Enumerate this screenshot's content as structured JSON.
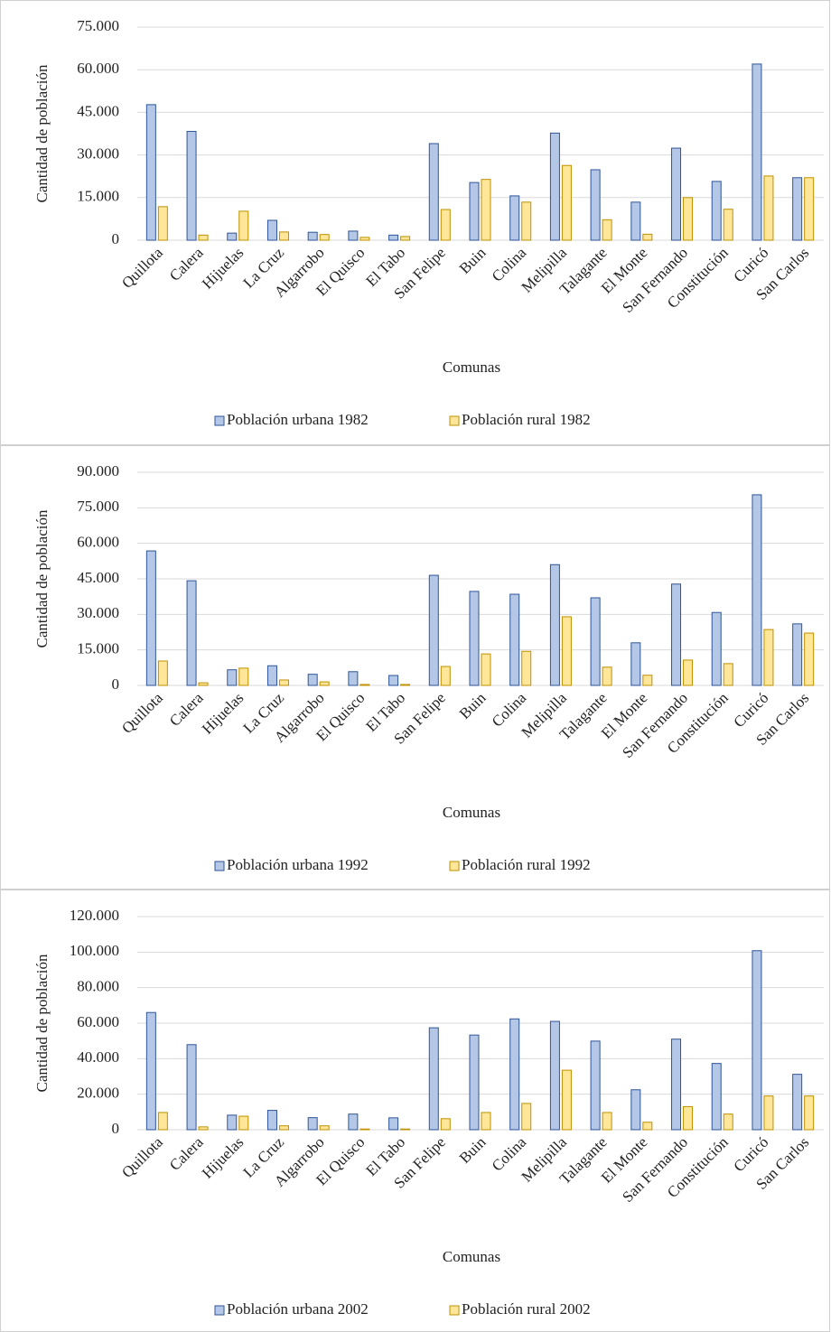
{
  "chart_data": [
    {
      "type": "bar",
      "y_label": "Cantidad de población",
      "x_label": "Comunas",
      "categories": [
        "Quillota",
        "Calera",
        "Hijuelas",
        "La Cruz",
        "Algarrobo",
        "El Quisco",
        "El Tabo",
        "San Felipe",
        "Buin",
        "Colina",
        "Melipilla",
        "Talagante",
        "El Monte",
        "San Fernando",
        "Constitución",
        "Curicó",
        "San Carlos"
      ],
      "series": [
        {
          "name": "Población urbana 1982",
          "color": "#b4c7e7",
          "values": [
            47700,
            38300,
            2500,
            7000,
            2800,
            3200,
            1800,
            34000,
            20300,
            15600,
            37700,
            24800,
            13400,
            32400,
            20700,
            62000,
            22000
          ]
        },
        {
          "name": "Población rural 1982",
          "color": "#ffe699",
          "values": [
            11800,
            1800,
            10200,
            2900,
            2000,
            1000,
            1300,
            10800,
            21400,
            13400,
            26300,
            7200,
            2100,
            15000,
            10900,
            22600,
            22000
          ]
        }
      ],
      "ylim": [
        0,
        75000
      ],
      "yticks": [
        0,
        {
          "value": 15000,
          "label": "15.000"
        },
        {
          "value": 30000,
          "label": "30.000"
        },
        {
          "value": 45000,
          "label": "45.000"
        },
        {
          "value": 60000,
          "label": "60.000"
        },
        {
          "value": 75000,
          "label": "75.000"
        }
      ],
      "grid": true,
      "legend": "bottom"
    },
    {
      "type": "bar",
      "y_label": "Cantidad de población",
      "x_label": "Comunas",
      "categories": [
        "Quillota",
        "Calera",
        "Hijuelas",
        "La Cruz",
        "Algarrobo",
        "El Quisco",
        "El Tabo",
        "San Felipe",
        "Buin",
        "Colina",
        "Melipilla",
        "Talagante",
        "El Monte",
        "San Fernando",
        "Constitución",
        "Curicó",
        "San Carlos"
      ],
      "series": [
        {
          "name": "Población urbana 1992",
          "color": "#b4c7e7",
          "values": [
            56800,
            44200,
            6600,
            8300,
            4700,
            5800,
            4200,
            46500,
            39700,
            38500,
            51000,
            37000,
            18000,
            42800,
            30800,
            80500,
            26000
          ]
        },
        {
          "name": "Población rural 1992",
          "color": "#ffe699",
          "values": [
            10300,
            1100,
            7300,
            2300,
            1500,
            400,
            400,
            8000,
            13300,
            14400,
            29000,
            7700,
            4300,
            10700,
            9200,
            23600,
            22100
          ]
        }
      ],
      "ylim": [
        0,
        90000
      ],
      "yticks": [
        0,
        {
          "value": 15000,
          "label": "15.000"
        },
        {
          "value": 30000,
          "label": "30.000"
        },
        {
          "value": 45000,
          "label": "45.000"
        },
        {
          "value": 60000,
          "label": "60.000"
        },
        {
          "value": 75000,
          "label": "75.000"
        },
        {
          "value": 90000,
          "label": "90.000"
        }
      ],
      "grid": true,
      "legend": "bottom"
    },
    {
      "type": "bar",
      "y_label": "Cantidad de población",
      "x_label": "Comunas",
      "categories": [
        "Quillota",
        "Calera",
        "Hijuelas",
        "La Cruz",
        "Algarrobo",
        "El Quisco",
        "El Tabo",
        "San Felipe",
        "Buin",
        "Colina",
        "Melipilla",
        "Talagante",
        "El Monte",
        "San Fernando",
        "Constitución",
        "Curicó",
        "San Carlos"
      ],
      "series": [
        {
          "name": "Población urbana 2002",
          "color": "#b4c7e7",
          "values": [
            66000,
            47900,
            8200,
            10900,
            6800,
            8800,
            6700,
            57400,
            53300,
            62400,
            61000,
            49900,
            22500,
            51000,
            37300,
            100800,
            31200
          ]
        },
        {
          "name": "Población rural 2002",
          "color": "#ffe699",
          "values": [
            9700,
            1600,
            7600,
            2200,
            2200,
            400,
            400,
            6200,
            9700,
            14800,
            33500,
            9700,
            4200,
            13000,
            8800,
            19000,
            19000
          ]
        }
      ],
      "ylim": [
        0,
        120000
      ],
      "yticks": [
        0,
        {
          "value": 20000,
          "label": "20.000"
        },
        {
          "value": 40000,
          "label": "40.000"
        },
        {
          "value": 60000,
          "label": "60.000"
        },
        {
          "value": 80000,
          "label": "80.000"
        },
        {
          "value": 100000,
          "label": "100.000"
        },
        {
          "value": 120000,
          "label": "120.000"
        }
      ],
      "grid": true,
      "legend": "bottom"
    }
  ]
}
